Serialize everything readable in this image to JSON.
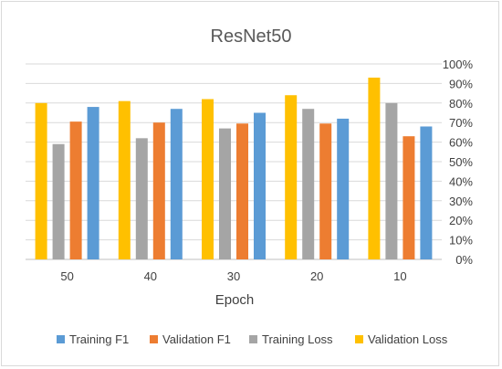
{
  "chart_data": {
    "type": "bar",
    "title": "ResNet50",
    "xlabel": "Epoch",
    "ylabel": "",
    "categories": [
      "50",
      "40",
      "30",
      "20",
      "10"
    ],
    "series": [
      {
        "name": "Validation Loss",
        "color": "#FFC000",
        "values": [
          0.8,
          0.81,
          0.82,
          0.84,
          0.93
        ]
      },
      {
        "name": "Training Loss",
        "color": "#A5A5A5",
        "values": [
          0.59,
          0.62,
          0.67,
          0.77,
          0.8
        ]
      },
      {
        "name": "Validation F1",
        "color": "#ED7D31",
        "values": [
          0.705,
          0.7,
          0.695,
          0.695,
          0.63
        ]
      },
      {
        "name": "Training F1",
        "color": "#5B9BD5",
        "values": [
          0.78,
          0.77,
          0.75,
          0.72,
          0.68
        ]
      }
    ],
    "legend_order": [
      "Training F1",
      "Validation F1",
      "Training Loss",
      "Validation Loss"
    ],
    "ylim": [
      0,
      1
    ],
    "yticks": [
      "0%",
      "10%",
      "20%",
      "30%",
      "40%",
      "50%",
      "60%",
      "70%",
      "80%",
      "90%",
      "100%"
    ],
    "y_axis_position": "right",
    "grid": true,
    "legend_position": "bottom"
  }
}
